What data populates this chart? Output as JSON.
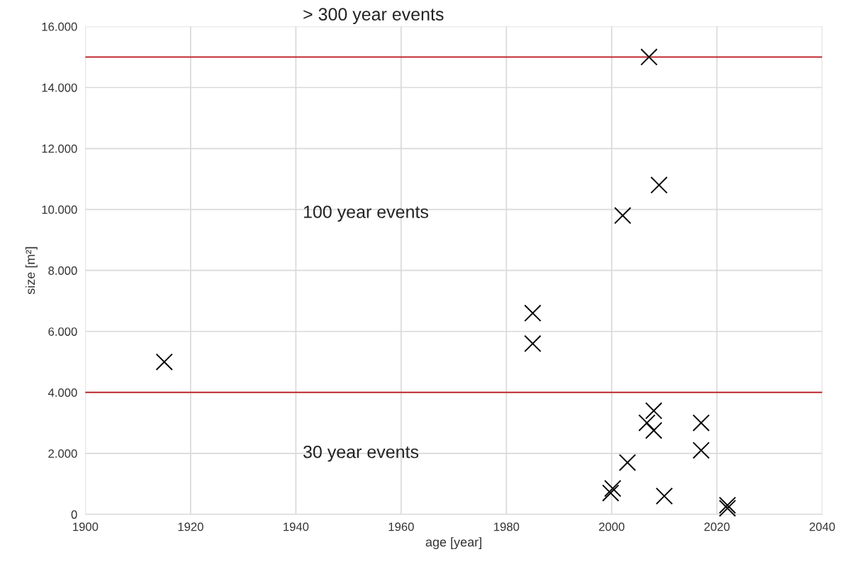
{
  "chart_data": {
    "type": "scatter",
    "xlabel": "age [year]",
    "ylabel": "size [m²]",
    "x": [
      1915,
      1985,
      1985,
      2002.1,
      2009,
      2007.1,
      2008,
      2006.7,
      2008,
      2017,
      2017,
      2003,
      1999.8,
      2000.2,
      2010,
      2022,
      2022
    ],
    "values": [
      5000,
      6600,
      5600,
      9800,
      10800,
      15000,
      3400,
      3000,
      2750,
      3000,
      2100,
      1700,
      700,
      850,
      600,
      300,
      200
    ],
    "color": "#000000",
    "marker": "cross",
    "xlim": [
      1900,
      2040
    ],
    "xticks": [
      1900,
      1920,
      1940,
      1960,
      1980,
      2000,
      2020,
      2040
    ],
    "ylim": [
      0,
      16000
    ],
    "yticks": [
      {
        "value": 0,
        "label": "0"
      },
      {
        "value": 2000,
        "label": "2.000"
      },
      {
        "value": 4000,
        "label": "4.000"
      },
      {
        "value": 6000,
        "label": "6.000"
      },
      {
        "value": 8000,
        "label": "8.000"
      },
      {
        "value": 10000,
        "label": "10.000"
      },
      {
        "value": 12000,
        "label": "12.000"
      },
      {
        "value": 14000,
        "label": "14.000"
      },
      {
        "value": 16000,
        "label": "16.000"
      }
    ],
    "grid": true,
    "ref_lines": [
      {
        "axis": "y",
        "value": 15000,
        "color": "#c0282d"
      },
      {
        "axis": "y",
        "value": 4000,
        "color": "#c0282d"
      }
    ],
    "annotations": [
      "> 300 year events",
      "100 year events",
      "30 year events"
    ]
  }
}
